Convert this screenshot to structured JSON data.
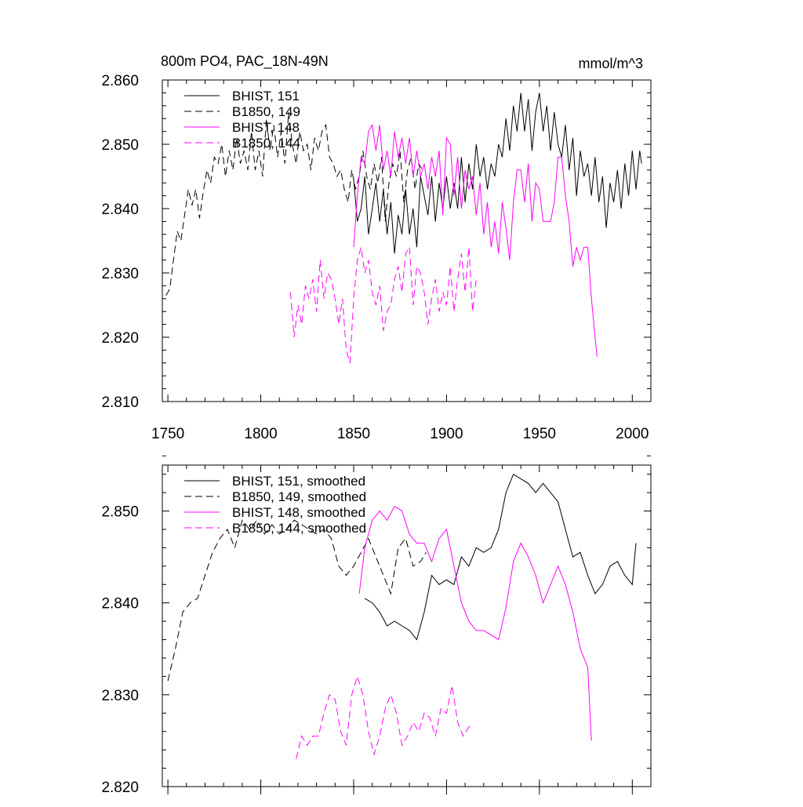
{
  "colors": {
    "black": "#000000",
    "magenta": "#ff00ff",
    "background": "#ffffff"
  },
  "chart_data": [
    {
      "type": "line",
      "title": "800m PO4, PAC_18N-49N",
      "units": "mmol/m^3",
      "xlim": [
        1747,
        2010
      ],
      "ylim": [
        2.81,
        2.86
      ],
      "xticks": [
        "1750",
        "1800",
        "1850",
        "1900",
        "1950",
        "2000"
      ],
      "yticks": [
        "2.810",
        "2.820",
        "2.830",
        "2.840",
        "2.850",
        "2.860"
      ],
      "legend_position": "top-left",
      "series": [
        {
          "name": "BHIST, 151",
          "color": "#000000",
          "dash": "solid",
          "x": [
            1850,
            1852,
            1854,
            1856,
            1858,
            1860,
            1862,
            1864,
            1866,
            1868,
            1870,
            1872,
            1874,
            1876,
            1878,
            1880,
            1882,
            1884,
            1886,
            1888,
            1890,
            1892,
            1894,
            1896,
            1898,
            1900,
            1902,
            1904,
            1906,
            1908,
            1910,
            1912,
            1914,
            1916,
            1918,
            1920,
            1922,
            1924,
            1926,
            1928,
            1930,
            1932,
            1934,
            1936,
            1938,
            1940,
            1942,
            1944,
            1946,
            1948,
            1950,
            1952,
            1954,
            1956,
            1958,
            1960,
            1962,
            1964,
            1966,
            1968,
            1970,
            1972,
            1974,
            1976,
            1978,
            1980,
            1982,
            1984,
            1986,
            1988,
            1990,
            1992,
            1994,
            1996,
            1998,
            2000,
            2002,
            2004,
            2005
          ],
          "y": [
            2.8445,
            2.838,
            2.84,
            2.845,
            2.836,
            2.84,
            2.844,
            2.838,
            2.843,
            2.836,
            2.841,
            2.833,
            2.839,
            2.836,
            2.843,
            2.836,
            2.84,
            2.834,
            2.845,
            2.842,
            2.839,
            2.845,
            2.838,
            2.844,
            2.84,
            2.845,
            2.84,
            2.844,
            2.84,
            2.848,
            2.841,
            2.847,
            2.843,
            2.85,
            2.845,
            2.848,
            2.843,
            2.847,
            2.845,
            2.85,
            2.848,
            2.854,
            2.849,
            2.856,
            2.852,
            2.858,
            2.852,
            2.857,
            2.849,
            2.855,
            2.858,
            2.852,
            2.856,
            2.849,
            2.855,
            2.85,
            2.848,
            2.853,
            2.846,
            2.851,
            2.842,
            2.849,
            2.845,
            2.847,
            2.842,
            2.848,
            2.841,
            2.845,
            2.837,
            2.844,
            2.841,
            2.846,
            2.84,
            2.847,
            2.842,
            2.849,
            2.843,
            2.849,
            2.847
          ]
        },
        {
          "name": "B1850, 149",
          "color": "#000000",
          "dash": "dashed",
          "x": [
            1749,
            1751,
            1753,
            1755,
            1757,
            1759,
            1761,
            1763,
            1765,
            1767,
            1769,
            1771,
            1773,
            1775,
            1777,
            1779,
            1781,
            1783,
            1785,
            1787,
            1789,
            1791,
            1793,
            1795,
            1797,
            1799,
            1801,
            1803,
            1805,
            1807,
            1809,
            1811,
            1813,
            1815,
            1817,
            1819,
            1821,
            1823,
            1825,
            1827,
            1829,
            1831,
            1833,
            1835,
            1837,
            1839,
            1841,
            1843,
            1845,
            1847,
            1849,
            1851,
            1853,
            1855,
            1857,
            1859,
            1861,
            1863,
            1865,
            1867,
            1869,
            1871,
            1873,
            1875,
            1877,
            1879,
            1881,
            1883,
            1885,
            1887
          ],
          "y": [
            2.8265,
            2.8275,
            2.832,
            2.8365,
            2.835,
            2.839,
            2.843,
            2.8405,
            2.843,
            2.8385,
            2.8425,
            2.846,
            2.844,
            2.848,
            2.847,
            2.85,
            2.845,
            2.849,
            2.846,
            2.851,
            2.847,
            2.849,
            2.846,
            2.852,
            2.846,
            2.849,
            2.845,
            2.854,
            2.849,
            2.853,
            2.848,
            2.852,
            2.847,
            2.855,
            2.85,
            2.847,
            2.852,
            2.849,
            2.85,
            2.846,
            2.851,
            2.849,
            2.852,
            2.853,
            2.848,
            2.847,
            2.845,
            2.846,
            2.843,
            2.841,
            2.846,
            2.843,
            2.845,
            2.849,
            2.845,
            2.843,
            2.847,
            2.844,
            2.848,
            2.838,
            2.844,
            2.847,
            2.845,
            2.849,
            2.841,
            2.846,
            2.848,
            2.843,
            2.847,
            2.846
          ]
        },
        {
          "name": "BHIST, 148",
          "color": "#ff00ff",
          "dash": "solid",
          "x": [
            1850,
            1852,
            1854,
            1856,
            1858,
            1860,
            1862,
            1864,
            1866,
            1868,
            1870,
            1872,
            1874,
            1876,
            1878,
            1880,
            1882,
            1884,
            1886,
            1888,
            1890,
            1892,
            1894,
            1896,
            1898,
            1900,
            1902,
            1904,
            1906,
            1908,
            1910,
            1912,
            1914,
            1916,
            1918,
            1920,
            1922,
            1924,
            1926,
            1928,
            1930,
            1932,
            1934,
            1936,
            1938,
            1940,
            1942,
            1944,
            1946,
            1948,
            1950,
            1952,
            1954,
            1956,
            1958,
            1960,
            1962,
            1964,
            1966,
            1968,
            1970,
            1972,
            1974,
            1976,
            1978,
            1980,
            1981
          ],
          "y": [
            2.834,
            2.842,
            2.848,
            2.847,
            2.852,
            2.853,
            2.849,
            2.853,
            2.846,
            2.849,
            2.845,
            2.852,
            2.848,
            2.851,
            2.847,
            2.851,
            2.845,
            2.849,
            2.845,
            2.847,
            2.843,
            2.848,
            2.845,
            2.849,
            2.839,
            2.851,
            2.85,
            2.842,
            2.848,
            2.84,
            2.846,
            2.843,
            2.845,
            2.839,
            2.844,
            2.836,
            2.841,
            2.834,
            2.838,
            2.833,
            2.841,
            2.837,
            2.832,
            2.841,
            2.846,
            2.846,
            2.841,
            2.847,
            2.838,
            2.844,
            2.843,
            2.838,
            2.838,
            2.838,
            2.841,
            2.848,
            2.848,
            2.842,
            2.838,
            2.831,
            2.834,
            2.832,
            2.834,
            2.834,
            2.826,
            2.82,
            2.817
          ]
        },
        {
          "name": "B1850, 144",
          "color": "#ff00ff",
          "dash": "dashed",
          "x": [
            1816,
            1818,
            1820,
            1822,
            1824,
            1826,
            1828,
            1830,
            1832,
            1834,
            1836,
            1838,
            1840,
            1842,
            1844,
            1846,
            1848,
            1850,
            1852,
            1854,
            1856,
            1858,
            1860,
            1862,
            1864,
            1866,
            1868,
            1870,
            1872,
            1874,
            1876,
            1878,
            1880,
            1882,
            1884,
            1886,
            1888,
            1890,
            1892,
            1894,
            1896,
            1898,
            1900,
            1902,
            1904,
            1906,
            1908,
            1910,
            1912,
            1914,
            1916
          ],
          "y": [
            2.827,
            2.82,
            2.825,
            2.822,
            2.828,
            2.826,
            2.829,
            2.824,
            2.832,
            2.826,
            2.83,
            2.829,
            2.826,
            2.822,
            2.826,
            2.818,
            2.816,
            2.826,
            2.832,
            2.834,
            2.83,
            2.832,
            2.827,
            2.825,
            2.828,
            2.821,
            2.824,
            2.825,
            2.829,
            2.831,
            2.827,
            2.833,
            2.834,
            2.825,
            2.831,
            2.83,
            2.827,
            2.822,
            2.826,
            2.829,
            2.824,
            2.827,
            2.825,
            2.831,
            2.824,
            2.829,
            2.833,
            2.827,
            2.834,
            2.824,
            2.829
          ]
        }
      ]
    },
    {
      "type": "line",
      "xlim": [
        1747,
        2010
      ],
      "ylim": [
        2.82,
        2.855
      ],
      "yticks": [
        "2.820",
        "2.830",
        "2.840",
        "2.850"
      ],
      "legend_position": "top-left",
      "series": [
        {
          "name": "BHIST, 151, smoothed",
          "color": "#000000",
          "dash": "solid",
          "x": [
            1856,
            1860,
            1864,
            1868,
            1872,
            1876,
            1880,
            1884,
            1888,
            1892,
            1896,
            1900,
            1904,
            1908,
            1912,
            1916,
            1920,
            1924,
            1928,
            1932,
            1936,
            1940,
            1944,
            1948,
            1952,
            1956,
            1960,
            1964,
            1968,
            1972,
            1976,
            1980,
            1984,
            1988,
            1992,
            1996,
            2000,
            2002
          ],
          "y": [
            2.8405,
            2.84,
            2.839,
            2.8375,
            2.838,
            2.8375,
            2.837,
            2.836,
            2.839,
            2.843,
            2.842,
            2.8425,
            2.842,
            2.845,
            2.844,
            2.846,
            2.8455,
            2.846,
            2.848,
            2.852,
            2.854,
            2.8535,
            2.853,
            2.852,
            2.853,
            2.852,
            2.851,
            2.848,
            2.845,
            2.8455,
            2.843,
            2.841,
            2.842,
            2.844,
            2.8445,
            2.843,
            2.842,
            2.8465
          ]
        },
        {
          "name": "B1850, 149, smoothed",
          "color": "#000000",
          "dash": "dashed",
          "x": [
            1750,
            1754,
            1758,
            1762,
            1766,
            1770,
            1774,
            1778,
            1782,
            1786,
            1790,
            1794,
            1798,
            1802,
            1806,
            1810,
            1814,
            1818,
            1822,
            1826,
            1830,
            1834,
            1838,
            1842,
            1846,
            1850,
            1854,
            1858,
            1862,
            1866,
            1870,
            1874,
            1878,
            1882,
            1886,
            1889
          ],
          "y": [
            2.8315,
            2.835,
            2.839,
            2.84,
            2.8405,
            2.843,
            2.8455,
            2.847,
            2.848,
            2.846,
            2.849,
            2.848,
            2.849,
            2.8475,
            2.8485,
            2.8475,
            2.848,
            2.849,
            2.8485,
            2.848,
            2.8475,
            2.848,
            2.847,
            2.844,
            2.843,
            2.844,
            2.8455,
            2.847,
            2.845,
            2.843,
            2.841,
            2.846,
            2.847,
            2.844,
            2.8445,
            2.8455
          ]
        },
        {
          "name": "BHIST, 148, smoothed",
          "color": "#ff00ff",
          "dash": "solid",
          "x": [
            1853,
            1856,
            1860,
            1864,
            1868,
            1872,
            1876,
            1880,
            1884,
            1888,
            1892,
            1896,
            1900,
            1904,
            1908,
            1912,
            1916,
            1920,
            1924,
            1928,
            1932,
            1936,
            1940,
            1944,
            1948,
            1952,
            1956,
            1960,
            1964,
            1968,
            1972,
            1976,
            1978
          ],
          "y": [
            2.841,
            2.846,
            2.849,
            2.85,
            2.849,
            2.8505,
            2.85,
            2.8475,
            2.8465,
            2.8465,
            2.8445,
            2.847,
            2.848,
            2.844,
            2.84,
            2.838,
            2.837,
            2.837,
            2.8365,
            2.836,
            2.8395,
            2.8445,
            2.8465,
            2.845,
            2.843,
            2.84,
            2.842,
            2.844,
            2.842,
            2.839,
            2.835,
            2.833,
            2.825
          ]
        },
        {
          "name": "B1850, 144, smoothed",
          "color": "#ff00ff",
          "dash": "dashed",
          "x": [
            1819,
            1822,
            1825,
            1828,
            1831,
            1834,
            1837,
            1840,
            1843,
            1846,
            1849,
            1852,
            1855,
            1858,
            1861,
            1864,
            1867,
            1870,
            1873,
            1876,
            1879,
            1882,
            1885,
            1888,
            1891,
            1894,
            1897,
            1900,
            1903,
            1906,
            1909,
            1912,
            1914
          ],
          "y": [
            2.823,
            2.8255,
            2.8245,
            2.8255,
            2.8255,
            2.828,
            2.83,
            2.8295,
            2.826,
            2.8245,
            2.83,
            2.832,
            2.83,
            2.826,
            2.8235,
            2.8255,
            2.8285,
            2.83,
            2.828,
            2.8245,
            2.8255,
            2.827,
            2.826,
            2.828,
            2.8275,
            2.8255,
            2.8285,
            2.828,
            2.831,
            2.827,
            2.8255,
            2.8265,
            2.8265
          ]
        }
      ]
    }
  ]
}
